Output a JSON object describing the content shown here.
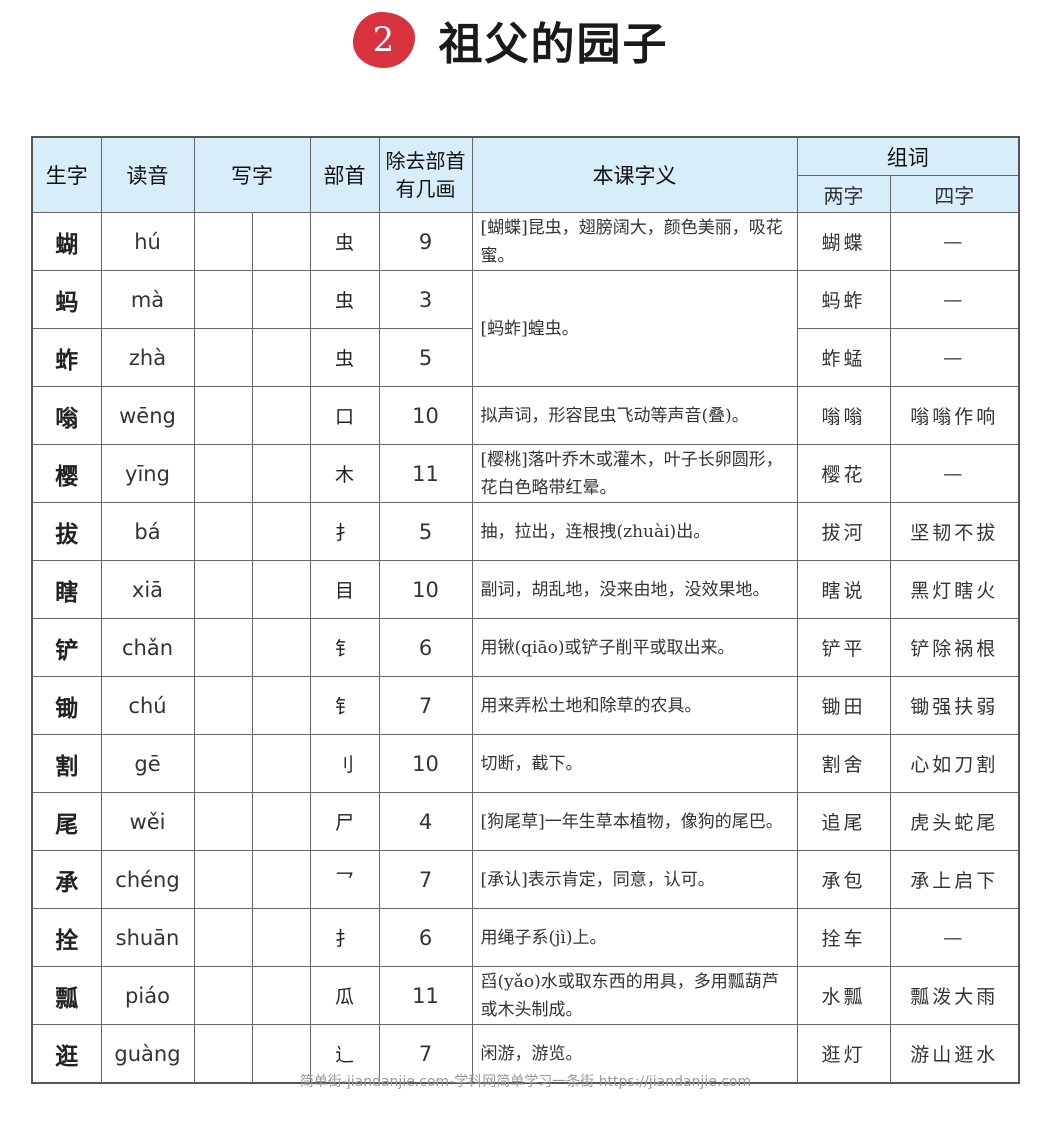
{
  "lesson": {
    "number": "2",
    "title": "祖父的园子"
  },
  "headers": {
    "char": "生字",
    "pinyin": "读音",
    "write": "写字",
    "radical": "部首",
    "strokes": "除去部首有几画",
    "meaning": "本课字义",
    "words": "组词",
    "two_char": "两字",
    "four_char": "四字"
  },
  "rows": [
    {
      "char": "蝴",
      "pinyin": "hú",
      "radical": "虫",
      "strokes": "9",
      "meaning": "[蝴蝶]昆虫，翅膀阔大，颜色美丽，吸花蜜。",
      "two": "蝴蝶",
      "four": "—"
    },
    {
      "char": "蚂",
      "pinyin": "mà",
      "radical": "虫",
      "strokes": "3",
      "meaning": "[蚂蚱]蝗虫。",
      "two": "蚂蚱",
      "four": "—"
    },
    {
      "char": "蚱",
      "pinyin": "zhà",
      "radical": "虫",
      "strokes": "5",
      "meaning": "",
      "two": "蚱蜢",
      "four": "—"
    },
    {
      "char": "嗡",
      "pinyin": "wēng",
      "radical": "口",
      "strokes": "10",
      "meaning": "拟声词，形容昆虫飞动等声音(叠)。",
      "two": "嗡嗡",
      "four": "嗡嗡作响"
    },
    {
      "char": "樱",
      "pinyin": "yīng",
      "radical": "木",
      "strokes": "11",
      "meaning": "[樱桃]落叶乔木或灌木，叶子长卵圆形，花白色略带红晕。",
      "two": "樱花",
      "four": "—"
    },
    {
      "char": "拔",
      "pinyin": "bá",
      "radical": "扌",
      "strokes": "5",
      "meaning": "抽，拉出，连根拽(zhuài)出。",
      "two": "拔河",
      "four": "坚韧不拔"
    },
    {
      "char": "瞎",
      "pinyin": "xiā",
      "radical": "目",
      "strokes": "10",
      "meaning": "副词，胡乱地，没来由地，没效果地。",
      "two": "瞎说",
      "four": "黑灯瞎火"
    },
    {
      "char": "铲",
      "pinyin": "chǎn",
      "radical": "钅",
      "strokes": "6",
      "meaning": "用锹(qiāo)或铲子削平或取出来。",
      "two": "铲平",
      "four": "铲除祸根"
    },
    {
      "char": "锄",
      "pinyin": "chú",
      "radical": "钅",
      "strokes": "7",
      "meaning": "用来弄松土地和除草的农具。",
      "two": "锄田",
      "four": "锄强扶弱"
    },
    {
      "char": "割",
      "pinyin": "gē",
      "radical": "刂",
      "strokes": "10",
      "meaning": "切断，截下。",
      "two": "割舍",
      "four": "心如刀割"
    },
    {
      "char": "尾",
      "pinyin": "wěi",
      "radical": "尸",
      "strokes": "4",
      "meaning": "[狗尾草]一年生草本植物，像狗的尾巴。",
      "two": "追尾",
      "four": "虎头蛇尾"
    },
    {
      "char": "承",
      "pinyin": "chéng",
      "radical": "乛",
      "strokes": "7",
      "meaning": "[承认]表示肯定，同意，认可。",
      "two": "承包",
      "four": "承上启下"
    },
    {
      "char": "拴",
      "pinyin": "shuān",
      "radical": "扌",
      "strokes": "6",
      "meaning": "用绳子系(jì)上。",
      "two": "拴车",
      "four": "—"
    },
    {
      "char": "瓢",
      "pinyin": "piáo",
      "radical": "瓜",
      "strokes": "11",
      "meaning": "舀(yǎo)水或取东西的用具，多用瓢葫芦或木头制成。",
      "two": "水瓢",
      "four": "瓢泼大雨"
    },
    {
      "char": "逛",
      "pinyin": "guàng",
      "radical": "辶",
      "strokes": "7",
      "meaning": "闲游，游览。",
      "two": "逛灯",
      "four": "游山逛水"
    }
  ],
  "watermark": "简单街-jiandanjie.com-学科网简单学习一条街 https://jiandanjie.com",
  "colors": {
    "header_bg": "#d7eefa",
    "badge": "#d8323f"
  }
}
